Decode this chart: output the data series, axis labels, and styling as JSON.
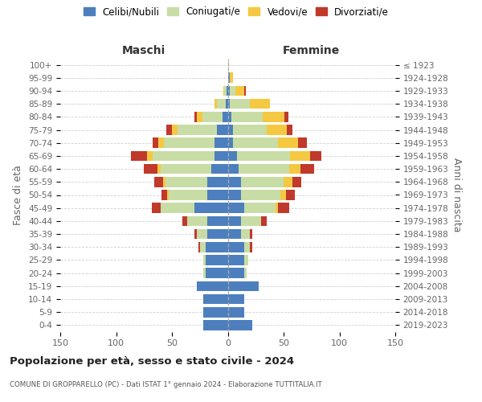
{
  "age_groups_bottom_to_top": [
    "0-4",
    "5-9",
    "10-14",
    "15-19",
    "20-24",
    "25-29",
    "30-34",
    "35-39",
    "40-44",
    "45-49",
    "50-54",
    "55-59",
    "60-64",
    "65-69",
    "70-74",
    "75-79",
    "80-84",
    "85-89",
    "90-94",
    "95-99",
    "100+"
  ],
  "birth_years_bottom_to_top": [
    "2019-2023",
    "2014-2018",
    "2009-2013",
    "2004-2008",
    "1999-2003",
    "1994-1998",
    "1989-1993",
    "1984-1988",
    "1979-1983",
    "1974-1978",
    "1969-1973",
    "1964-1968",
    "1959-1963",
    "1954-1958",
    "1949-1953",
    "1944-1948",
    "1939-1943",
    "1934-1938",
    "1929-1933",
    "1924-1928",
    "≤ 1923"
  ],
  "colors": {
    "celibe": "#4d7fbe",
    "coniugato": "#c8dda5",
    "vedovo": "#f5c842",
    "divorziato": "#c0392b"
  },
  "m_celibe": [
    22,
    22,
    22,
    28,
    20,
    20,
    20,
    18,
    18,
    30,
    18,
    18,
    15,
    12,
    12,
    10,
    5,
    2,
    1,
    0,
    0
  ],
  "m_coniugato": [
    0,
    0,
    0,
    0,
    2,
    2,
    5,
    10,
    18,
    30,
    35,
    38,
    45,
    55,
    45,
    35,
    18,
    8,
    2,
    0,
    0
  ],
  "m_vedovo": [
    0,
    0,
    0,
    0,
    0,
    0,
    0,
    0,
    0,
    0,
    1,
    2,
    3,
    5,
    5,
    5,
    5,
    2,
    1,
    0,
    0
  ],
  "m_divorziato": [
    0,
    0,
    0,
    0,
    0,
    0,
    1,
    2,
    5,
    8,
    5,
    8,
    12,
    15,
    5,
    5,
    2,
    0,
    0,
    0,
    0
  ],
  "f_nubile": [
    22,
    15,
    15,
    28,
    15,
    15,
    15,
    12,
    12,
    15,
    12,
    12,
    10,
    8,
    5,
    5,
    3,
    2,
    2,
    2,
    0
  ],
  "f_coniugata": [
    0,
    0,
    0,
    0,
    2,
    3,
    5,
    8,
    18,
    28,
    35,
    38,
    45,
    48,
    40,
    30,
    28,
    18,
    5,
    0,
    0
  ],
  "f_vedova": [
    0,
    0,
    0,
    0,
    0,
    0,
    0,
    0,
    0,
    2,
    5,
    8,
    10,
    18,
    18,
    18,
    20,
    18,
    8,
    3,
    1
  ],
  "f_divorziata": [
    0,
    0,
    0,
    0,
    0,
    0,
    2,
    2,
    5,
    10,
    8,
    8,
    12,
    10,
    8,
    5,
    3,
    0,
    1,
    0,
    0
  ],
  "xlim": 150,
  "title": "Popolazione per età, sesso e stato civile - 2024",
  "subtitle": "COMUNE DI GROPPARELLO (PC) - Dati ISTAT 1° gennaio 2024 - Elaborazione TUTTITALIA.IT",
  "ylabel_left": "Fasce di età",
  "ylabel_right": "Anni di nascita",
  "label_maschi": "Maschi",
  "label_femmine": "Femmine",
  "legend_labels": [
    "Celibi/Nubili",
    "Coniugati/e",
    "Vedovi/e",
    "Divorziati/e"
  ],
  "bg_color": "#ffffff"
}
